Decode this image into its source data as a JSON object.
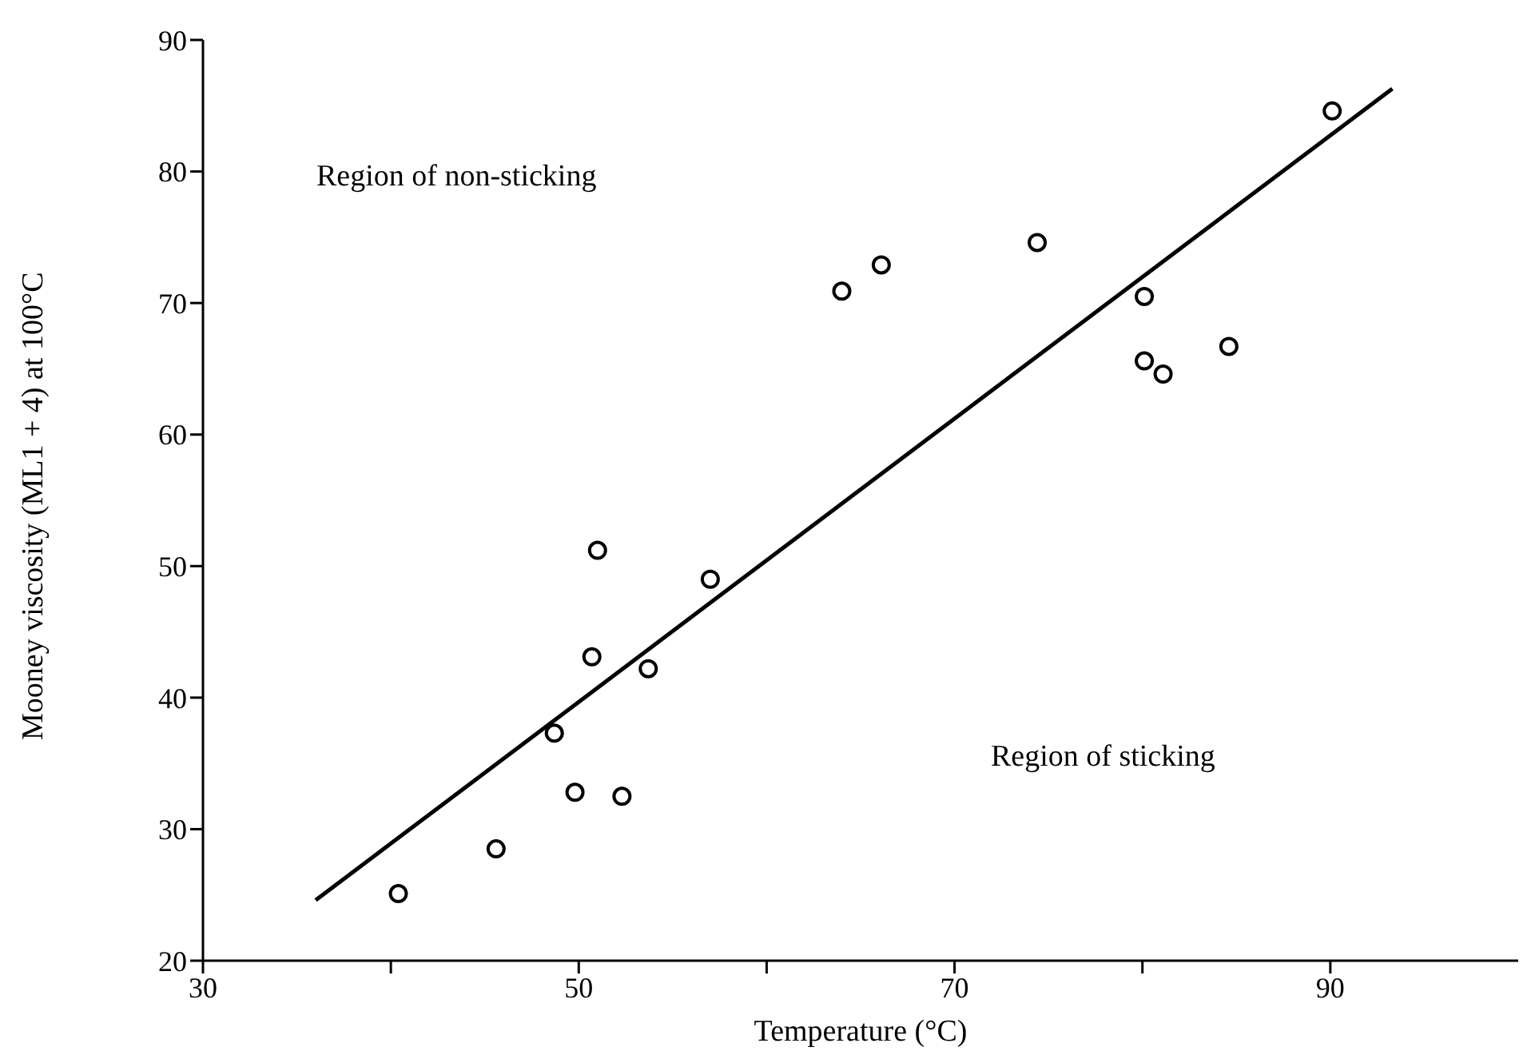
{
  "chart_data": {
    "type": "scatter",
    "xlabel": "Temperature (°C)",
    "ylabel": "Mooney viscosity (ML1 + 4) at 100°C",
    "xlim": [
      30,
      100
    ],
    "xticks": [
      30,
      {
        "value": 40,
        "label": null
      },
      50,
      {
        "value": 60,
        "label": null
      },
      70,
      {
        "value": 80,
        "label": null
      },
      90
    ],
    "ylim": [
      20,
      90
    ],
    "yticks": [
      20,
      30,
      40,
      50,
      60,
      70,
      80,
      90
    ],
    "annotations": [
      "Region of non-sticking",
      "Region of sticking"
    ],
    "series": [
      {
        "color": "#000000",
        "marker": "circle",
        "x": [
          40.4,
          45.6,
          49.8,
          52.3,
          48.7,
          50.7,
          51.0,
          53.7,
          57.0,
          64.0,
          66.1,
          74.4,
          80.1,
          80.1,
          81.1,
          84.6,
          90.1
        ],
        "values": [
          25.1,
          28.5,
          32.8,
          32.5,
          37.3,
          43.1,
          51.2,
          42.2,
          49.0,
          70.9,
          72.9,
          74.6,
          70.5,
          65.6,
          64.6,
          66.7,
          84.6
        ]
      },
      {
        "type": "line",
        "color": "#000000",
        "marker": "none",
        "line_style": "solid",
        "x": [
          36.0,
          93.3
        ],
        "values": [
          24.6,
          86.3
        ]
      }
    ]
  }
}
